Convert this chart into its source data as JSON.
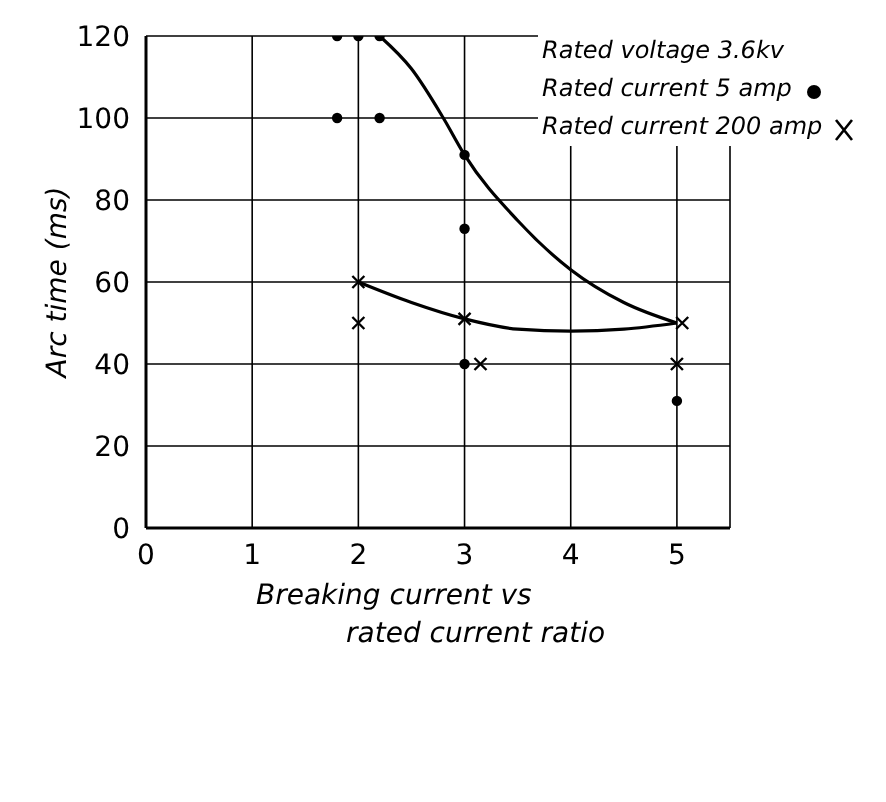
{
  "chart_data": {
    "type": "scatter",
    "xlabel": "Breaking current vs\nrated current ratio",
    "ylabel": "Arc time (ms)",
    "annotations": [
      "Rated voltage 3.6kv"
    ],
    "xlim": [
      0,
      5.5
    ],
    "xticks": [
      0,
      1,
      2,
      3,
      4,
      5
    ],
    "ylim": [
      0,
      120
    ],
    "yticks": [
      0,
      20,
      40,
      60,
      80,
      100,
      120
    ],
    "grid": true,
    "legend": "top right",
    "series": [
      {
        "name": "Rated current 5 amp",
        "marker": "circle",
        "color": "#000000",
        "x": [
          1.8,
          2,
          2.2,
          1.8,
          2.2,
          3,
          3,
          3,
          5
        ],
        "values": [
          120,
          120,
          120,
          100,
          100,
          91,
          73,
          40,
          31
        ]
      },
      {
        "name": "Rated current 200 amp",
        "marker": "cross",
        "color": "#000000",
        "x": [
          2,
          2,
          3,
          3.15,
          5.05,
          5
        ],
        "values": [
          60,
          50,
          51,
          40,
          50,
          40
        ]
      },
      {
        "type": "line",
        "marker": "none",
        "color": "#000000",
        "x": [
          2.2,
          2.5,
          2.8,
          3,
          3.5,
          4,
          4.5,
          5
        ],
        "values": [
          120,
          112,
          100,
          91,
          75,
          63,
          55,
          50
        ]
      },
      {
        "type": "line",
        "marker": "none",
        "color": "#000000",
        "x": [
          2,
          2.5,
          3,
          3.5,
          4,
          4.5,
          5
        ],
        "values": [
          60,
          55,
          51,
          48.5,
          48,
          48.5,
          50
        ]
      }
    ]
  }
}
